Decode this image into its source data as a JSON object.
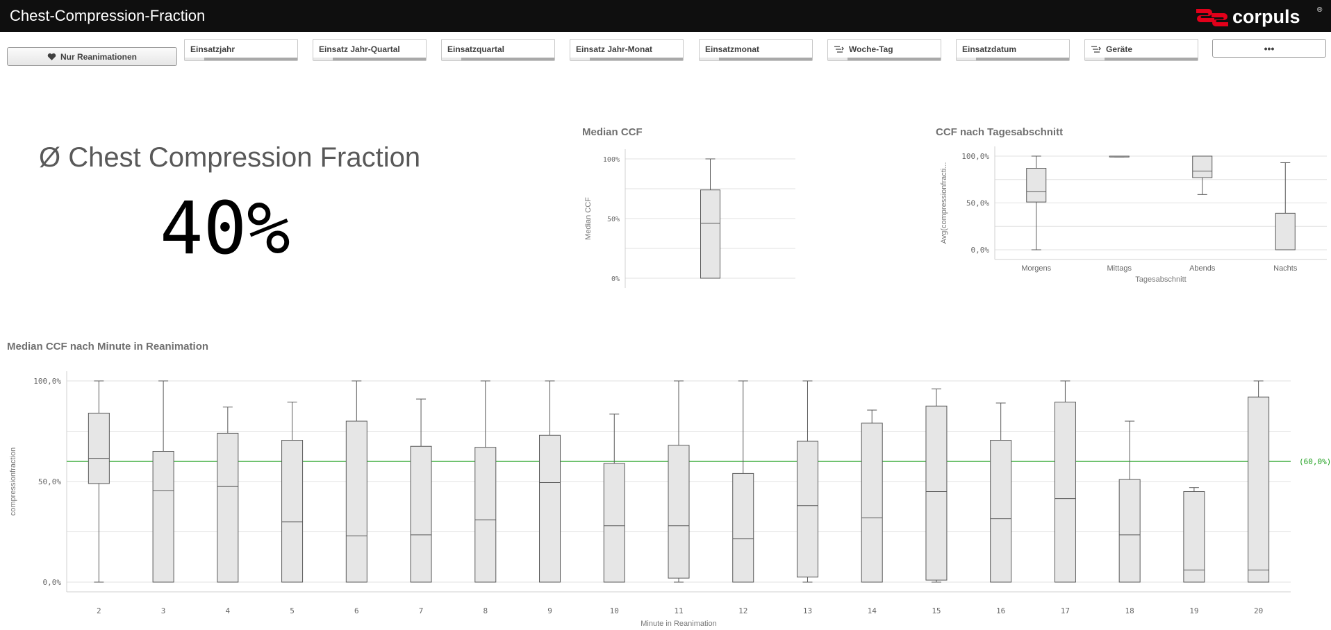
{
  "app": {
    "title": "Chest-Compression-Fraction",
    "logo_text": "corpuls",
    "logo_mark": "®"
  },
  "filters": {
    "reanim_button": "Nur Reanimationen",
    "items": [
      {
        "label": "Einsatzjahr",
        "icon": ""
      },
      {
        "label": "Einsatz Jahr-Quartal",
        "icon": ""
      },
      {
        "label": "Einsatzquartal",
        "icon": ""
      },
      {
        "label": "Einsatz Jahr-Monat",
        "icon": ""
      },
      {
        "label": "Einsatzmonat",
        "icon": ""
      },
      {
        "label": "Woche-Tag",
        "icon": "drill-down-icon"
      },
      {
        "label": "Einsatzdatum",
        "icon": ""
      },
      {
        "label": "Geräte",
        "icon": "drill-down-icon"
      }
    ],
    "more_label": "•••"
  },
  "kpi": {
    "title": "Ø Chest Compression Fraction",
    "value": "40%"
  },
  "colors": {
    "box_fill": "#e6e6e6",
    "box_stroke": "#595959",
    "grid": "#e0e0e0",
    "reference": "#1a9e1a"
  },
  "chart_data": [
    {
      "type": "boxplot",
      "title": "Median CCF",
      "ylabel": "Median CCF",
      "yticks": [
        "100%",
        "50%",
        "0%"
      ],
      "ytick_values": [
        100,
        50,
        0
      ],
      "ylim": [
        0,
        100
      ],
      "boxes": [
        {
          "min": 0,
          "q1": 0,
          "median": 46,
          "q3": 74,
          "max": 100
        }
      ]
    },
    {
      "type": "boxplot",
      "title": "CCF nach Tagesabschnitt",
      "ylabel": "Avg(compressionfracti...",
      "xlabel": "Tagesabschnitt",
      "yticks": [
        "100,0%",
        "50,0%",
        "0,0%"
      ],
      "ytick_values": [
        100,
        50,
        0
      ],
      "ylim": [
        0,
        100
      ],
      "categories": [
        "Morgens",
        "Mittags",
        "Abends",
        "Nachts"
      ],
      "boxes": [
        {
          "min": 0,
          "q1": 51,
          "median": 62,
          "q3": 87,
          "max": 100
        },
        {
          "min": 99,
          "q1": 99,
          "median": 100,
          "q3": 100,
          "max": 100
        },
        {
          "min": 59,
          "q1": 77,
          "median": 84,
          "q3": 100,
          "max": 100
        },
        {
          "min": 0,
          "q1": 0,
          "median": 0,
          "q3": 39,
          "max": 93
        }
      ]
    },
    {
      "type": "boxplot",
      "title": "Median CCF nach Minute in Reanimation",
      "ylabel": "compressionfraction",
      "xlabel": "Minute in Reanimation",
      "yticks": [
        "100,0%",
        "50,0%",
        "0,0%"
      ],
      "ytick_values": [
        100,
        50,
        0
      ],
      "ylim": [
        0,
        100
      ],
      "reference_line": {
        "value": 60,
        "label": "(60,0%)"
      },
      "categories": [
        "2",
        "3",
        "4",
        "5",
        "6",
        "7",
        "8",
        "9",
        "10",
        "11",
        "12",
        "13",
        "14",
        "15",
        "16",
        "17",
        "18",
        "19",
        "20"
      ],
      "boxes": [
        {
          "min": 0,
          "q1": 49,
          "median": 61.5,
          "q3": 84,
          "max": 100
        },
        {
          "min": 0,
          "q1": 0,
          "median": 45.5,
          "q3": 65,
          "max": 100
        },
        {
          "min": 0,
          "q1": 0,
          "median": 47.5,
          "q3": 74,
          "max": 87
        },
        {
          "min": 0,
          "q1": 0,
          "median": 30,
          "q3": 70.5,
          "max": 89.5
        },
        {
          "min": 0,
          "q1": 0,
          "median": 23,
          "q3": 80,
          "max": 100
        },
        {
          "min": 0,
          "q1": 0,
          "median": 23.5,
          "q3": 67.5,
          "max": 91
        },
        {
          "min": 0,
          "q1": 0,
          "median": 31,
          "q3": 67,
          "max": 100
        },
        {
          "min": 0,
          "q1": 0,
          "median": 49.5,
          "q3": 73,
          "max": 100
        },
        {
          "min": 0,
          "q1": 0,
          "median": 28,
          "q3": 59,
          "max": 83.5
        },
        {
          "min": 0,
          "q1": 2,
          "median": 28,
          "q3": 68,
          "max": 100
        },
        {
          "min": 0,
          "q1": 0,
          "median": 21.5,
          "q3": 54,
          "max": 100
        },
        {
          "min": 0,
          "q1": 2.5,
          "median": 38,
          "q3": 70,
          "max": 100
        },
        {
          "min": 0,
          "q1": 0,
          "median": 32,
          "q3": 79,
          "max": 85.5
        },
        {
          "min": 0,
          "q1": 1,
          "median": 45,
          "q3": 87.5,
          "max": 96
        },
        {
          "min": 0,
          "q1": 0,
          "median": 31.5,
          "q3": 70.5,
          "max": 89
        },
        {
          "min": 0,
          "q1": 0,
          "median": 41.5,
          "q3": 89.5,
          "max": 100
        },
        {
          "min": 0,
          "q1": 0,
          "median": 23.5,
          "q3": 51,
          "max": 80
        },
        {
          "min": 0,
          "q1": 0,
          "median": 6,
          "q3": 45,
          "max": 47
        },
        {
          "min": 0,
          "q1": 0,
          "median": 6,
          "q3": 92,
          "max": 100
        }
      ]
    }
  ]
}
